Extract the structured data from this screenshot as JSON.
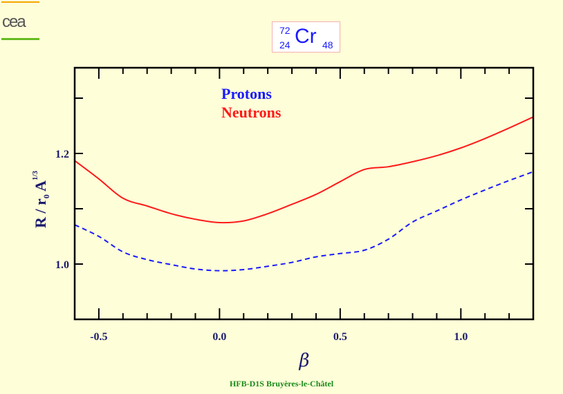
{
  "logo_text": "cea",
  "nucleus": {
    "mass": "72",
    "charge": "24",
    "symbol": "Cr",
    "neutrons": "48"
  },
  "footer": "HFB-D1S Bruyères-le-Châtel",
  "chart_data": {
    "type": "line",
    "title": "",
    "xlabel": "β",
    "ylabel": "R / r0 A1/3",
    "ylabel_parts": {
      "main": "R / r",
      "sub": "0",
      "mid": " A",
      "sup": "1/3"
    },
    "xlim": [
      -0.6,
      1.3
    ],
    "ylim": [
      0.9,
      1.355
    ],
    "xticks": [
      -0.5,
      0.0,
      0.5,
      1.0
    ],
    "xtick_labels": [
      "-0.5",
      "0.0",
      "0.5",
      "1.0"
    ],
    "yticks": [
      1.0,
      1.2
    ],
    "ytick_labels": [
      "1.0",
      "1.2"
    ],
    "legend_placement": "top-center",
    "x": [
      -0.6,
      -0.5,
      -0.4,
      -0.3,
      -0.2,
      -0.1,
      0.0,
      0.1,
      0.2,
      0.3,
      0.4,
      0.5,
      0.6,
      0.7,
      0.8,
      0.9,
      1.0,
      1.1,
      1.2,
      1.3
    ],
    "series": [
      {
        "name": "Protons",
        "color": "#1a1aff",
        "style": "dashed",
        "values": [
          1.071,
          1.05,
          1.022,
          1.008,
          0.999,
          0.991,
          0.988,
          0.99,
          0.996,
          1.003,
          1.013,
          1.019,
          1.025,
          1.045,
          1.076,
          1.096,
          1.116,
          1.134,
          1.151,
          1.167
        ]
      },
      {
        "name": "Neutrons",
        "color": "#ff1a1a",
        "style": "solid",
        "values": [
          1.187,
          1.154,
          1.119,
          1.105,
          1.091,
          1.081,
          1.075,
          1.078,
          1.091,
          1.108,
          1.126,
          1.149,
          1.171,
          1.176,
          1.185,
          1.196,
          1.21,
          1.227,
          1.246,
          1.266
        ]
      }
    ]
  }
}
